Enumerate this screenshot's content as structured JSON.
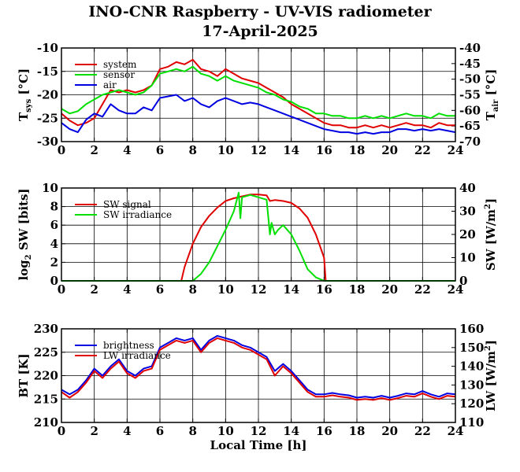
{
  "title": "INO-CNR Raspberry - UV-VIS radiometer",
  "date": "17-April-2025",
  "xlabel": "Local Time [h]",
  "colors": {
    "red": "#e00000",
    "green": "#00e000",
    "blue": "#0000e0"
  },
  "chart_data": [
    {
      "type": "line",
      "xlim": [
        0,
        24
      ],
      "xticks": [
        "0",
        "2",
        "4",
        "6",
        "8",
        "10",
        "12",
        "14",
        "16",
        "18",
        "20",
        "22",
        "24"
      ],
      "ylim": [
        -30,
        -10
      ],
      "yticks": [
        "-30",
        "-25",
        "-20",
        "-15",
        "-10"
      ],
      "y2lim": [
        -70,
        -40
      ],
      "y2ticks": [
        "-70",
        "-65",
        "-60",
        "-55",
        "-50",
        "-45",
        "-40"
      ],
      "ylabel_main": "T",
      "ylabel_sub": "sys",
      "ylabel_unit": " [°C]",
      "y2label_main": "T",
      "y2label_sub": "air",
      "y2label_unit": " [°C]",
      "grid": true,
      "legend": "top-left",
      "series": [
        {
          "name": "system",
          "color": "red",
          "axis": "left",
          "x": [
            0,
            0.5,
            1,
            1.5,
            2,
            2.5,
            3,
            3.5,
            4,
            4.5,
            5,
            5.5,
            6,
            6.5,
            7,
            7.5,
            8,
            8.5,
            9,
            9.5,
            10,
            10.5,
            11,
            11.5,
            12,
            12.5,
            13,
            13.5,
            14,
            14.5,
            15,
            15.5,
            16,
            16.5,
            17,
            17.5,
            18,
            18.5,
            19,
            19.5,
            20,
            20.5,
            21,
            21.5,
            22,
            22.5,
            23,
            23.5,
            24
          ],
          "y": [
            -24,
            -25.5,
            -26.5,
            -26,
            -25,
            -22,
            -19,
            -19.5,
            -19,
            -19.5,
            -19,
            -18,
            -14.5,
            -14,
            -13,
            -13.5,
            -12.5,
            -14.5,
            -15,
            -16,
            -14.5,
            -15.5,
            -16.5,
            -17,
            -17.5,
            -18.5,
            -19.5,
            -20.5,
            -22,
            -23,
            -24,
            -25,
            -26,
            -26.5,
            -26.5,
            -27,
            -27,
            -26.5,
            -27,
            -26.5,
            -27,
            -26.5,
            -26,
            -26.5,
            -26.5,
            -27,
            -26,
            -26.5,
            -26.5
          ]
        },
        {
          "name": "sensor",
          "color": "green",
          "axis": "left",
          "x": [
            0,
            0.5,
            1,
            1.5,
            2,
            2.5,
            3,
            3.5,
            4,
            4.5,
            5,
            5.5,
            6,
            6.5,
            7,
            7.5,
            8,
            8.5,
            9,
            9.5,
            10,
            10.5,
            11,
            11.5,
            12,
            12.5,
            13,
            13.5,
            14,
            14.5,
            15,
            15.5,
            16,
            16.5,
            17,
            17.5,
            18,
            18.5,
            19,
            19.5,
            20,
            20.5,
            21,
            21.5,
            22,
            22.5,
            23,
            23.5,
            24
          ],
          "y": [
            -23,
            -24,
            -23.5,
            -22,
            -21,
            -20,
            -19.5,
            -19,
            -19.5,
            -20,
            -19.5,
            -18,
            -15.5,
            -15,
            -14.5,
            -15,
            -14,
            -15.5,
            -16,
            -17,
            -16,
            -17,
            -17.5,
            -18,
            -18.5,
            -19.5,
            -20,
            -21,
            -21.5,
            -22.5,
            -23,
            -24,
            -24,
            -24.5,
            -24.5,
            -25,
            -25,
            -24.5,
            -25,
            -24.5,
            -25,
            -24.5,
            -24,
            -24.5,
            -24.5,
            -25,
            -24,
            -24.5,
            -24.5
          ]
        },
        {
          "name": "air",
          "color": "blue",
          "axis": "right",
          "x": [
            0,
            0.5,
            1,
            1.5,
            2,
            2.5,
            3,
            3.5,
            4,
            4.5,
            5,
            5.5,
            6,
            6.5,
            7,
            7.5,
            8,
            8.5,
            9,
            9.5,
            10,
            10.5,
            11,
            11.5,
            12,
            12.5,
            13,
            13.5,
            14,
            14.5,
            15,
            15.5,
            16,
            16.5,
            17,
            17.5,
            18,
            18.5,
            19,
            19.5,
            20,
            20.5,
            21,
            21.5,
            22,
            22.5,
            23,
            23.5,
            24
          ],
          "y": [
            -64,
            -66,
            -67,
            -63,
            -61,
            -62,
            -58,
            -60,
            -61,
            -61,
            -59,
            -60,
            -56,
            -55.5,
            -55,
            -57,
            -56,
            -58,
            -59,
            -57,
            -56,
            -57,
            -58,
            -57.5,
            -58,
            -59,
            -60,
            -61,
            -62,
            -63,
            -64,
            -65,
            -66,
            -66.5,
            -67,
            -67,
            -67.5,
            -67,
            -67.5,
            -67,
            -67,
            -66,
            -66,
            -66.5,
            -66,
            -66.5,
            -66,
            -66.5,
            -67
          ]
        }
      ]
    },
    {
      "type": "line",
      "xlim": [
        0,
        24
      ],
      "xticks": [
        "0",
        "2",
        "4",
        "6",
        "8",
        "10",
        "12",
        "14",
        "16",
        "18",
        "20",
        "22",
        "24"
      ],
      "ylim": [
        0,
        10
      ],
      "yticks": [
        "0",
        "2",
        "4",
        "6",
        "8",
        "10"
      ],
      "y2lim": [
        0,
        40
      ],
      "y2ticks": [
        "0",
        "10",
        "20",
        "30",
        "40"
      ],
      "ylabel_main": "log",
      "ylabel_sub": "2",
      "ylabel_unit": " SW [bits]",
      "y2label_main": "SW [W/m",
      "y2label_sup": "2",
      "y2label_unit": "]",
      "grid": true,
      "legend": "top-left",
      "series": [
        {
          "name": "SW signal",
          "color": "red",
          "axis": "left",
          "x": [
            0,
            7.3,
            7.5,
            8,
            8.5,
            9,
            9.5,
            10,
            10.5,
            11,
            11.5,
            12,
            12.5,
            12.7,
            13,
            13.5,
            14,
            14.5,
            15,
            15.5,
            16,
            16.1,
            24
          ],
          "y": [
            0,
            0,
            1.5,
            4,
            5.8,
            7,
            7.9,
            8.6,
            8.9,
            9.1,
            9.3,
            9.3,
            9.2,
            8.6,
            8.7,
            8.6,
            8.4,
            7.8,
            6.8,
            5,
            2.5,
            0,
            0
          ]
        },
        {
          "name": "SW irradiance",
          "color": "green",
          "axis": "right",
          "x": [
            0,
            8,
            8.5,
            9,
            9.5,
            10,
            10.5,
            10.8,
            10.9,
            11,
            11.5,
            12,
            12.5,
            12.7,
            12.8,
            13,
            13.2,
            13.5,
            14,
            14.5,
            15,
            15.5,
            16,
            24
          ],
          "y": [
            0,
            0,
            3,
            8,
            15,
            22,
            30,
            38,
            27,
            36,
            37,
            36,
            35,
            20,
            25,
            20,
            22,
            24,
            20,
            13,
            5,
            1.5,
            0,
            0
          ]
        }
      ]
    },
    {
      "type": "line",
      "xlim": [
        0,
        24
      ],
      "xticks": [
        "0",
        "2",
        "4",
        "6",
        "8",
        "10",
        "12",
        "14",
        "16",
        "18",
        "20",
        "22",
        "24"
      ],
      "ylim": [
        210,
        230
      ],
      "yticks": [
        "210",
        "215",
        "220",
        "225",
        "230"
      ],
      "y2lim": [
        110,
        160
      ],
      "y2ticks": [
        "110",
        "120",
        "130",
        "140",
        "150",
        "160"
      ],
      "ylabel_main": "BT [K]",
      "y2label_main": "LW [W/m",
      "y2label_sup": "2",
      "y2label_unit": "]",
      "grid": true,
      "legend": "top-left",
      "series": [
        {
          "name": "brightness",
          "color": "blue",
          "axis": "left",
          "x": [
            0,
            0.5,
            1,
            1.5,
            2,
            2.5,
            3,
            3.5,
            4,
            4.5,
            5,
            5.5,
            6,
            6.5,
            7,
            7.5,
            8,
            8.5,
            9,
            9.5,
            10,
            10.5,
            11,
            11.5,
            12,
            12.5,
            13,
            13.5,
            14,
            14.5,
            15,
            15.5,
            16,
            16.5,
            17,
            17.5,
            18,
            18.5,
            19,
            19.5,
            20,
            20.5,
            21,
            21.5,
            22,
            22.5,
            23,
            23.5,
            24
          ],
          "y": [
            217,
            216,
            217,
            219,
            221.5,
            220,
            222,
            223.5,
            221,
            220,
            221.5,
            222,
            226,
            227,
            228,
            227.5,
            228,
            225.5,
            227.5,
            228.5,
            228,
            227.5,
            226.5,
            226,
            225,
            224,
            221,
            222.5,
            221,
            219,
            217,
            216,
            216,
            216.3,
            216,
            215.8,
            215.3,
            215.5,
            215.3,
            215.7,
            215.3,
            215.7,
            216.2,
            216,
            216.7,
            216,
            215.5,
            216.2,
            216
          ]
        },
        {
          "name": "LW irradiance",
          "color": "red",
          "axis": "left",
          "x": [
            0,
            0.5,
            1,
            1.5,
            2,
            2.5,
            3,
            3.5,
            4,
            4.5,
            5,
            5.5,
            6,
            6.5,
            7,
            7.5,
            8,
            8.5,
            9,
            9.5,
            10,
            10.5,
            11,
            11.5,
            12,
            12.5,
            13,
            13.5,
            14,
            14.5,
            15,
            15.5,
            16,
            16.5,
            17,
            17.5,
            18,
            18.5,
            19,
            19.5,
            20,
            20.5,
            21,
            21.5,
            22,
            22.5,
            23,
            23.5,
            24
          ],
          "y": [
            216.5,
            215.3,
            216.5,
            218.5,
            221,
            219.5,
            221.5,
            223,
            220.5,
            219.5,
            221,
            221.5,
            225.5,
            226.5,
            227.5,
            227,
            227.5,
            225,
            227,
            228,
            227.5,
            227,
            226,
            225.5,
            224.5,
            223.5,
            220,
            222,
            220.5,
            218.5,
            216.5,
            215.5,
            215.5,
            215.8,
            215.5,
            215.3,
            214.8,
            215,
            214.8,
            215.2,
            214.8,
            215.2,
            215.7,
            215.5,
            216.2,
            215.5,
            215,
            215.7,
            215.5
          ]
        }
      ]
    }
  ]
}
